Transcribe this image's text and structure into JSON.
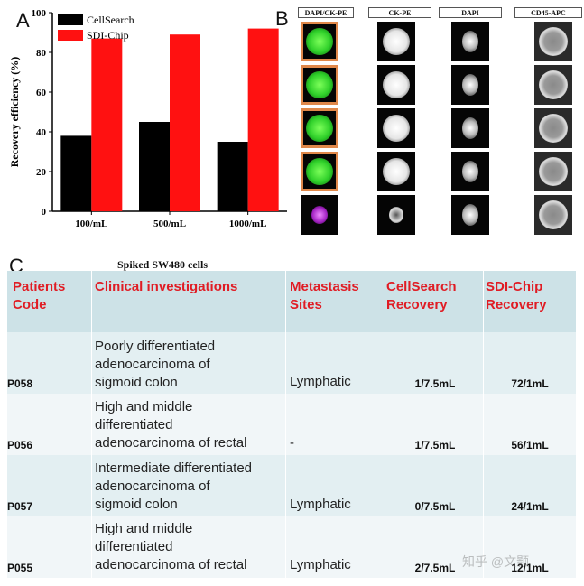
{
  "panel_a": {
    "letter": "A",
    "chart_data": {
      "type": "bar",
      "categories": [
        "100/mL",
        "500/mL",
        "1000/mL"
      ],
      "series": [
        {
          "name": "CellSearch",
          "values": [
            38,
            45,
            35
          ],
          "color": "#000000"
        },
        {
          "name": "SDI-Chip",
          "values": [
            87,
            89,
            92
          ],
          "color": "#ff1111"
        }
      ],
      "ylabel": "Recovery efficiency (%)",
      "ylim": [
        0,
        100
      ],
      "yticks": [
        "0",
        "20",
        "40",
        "60",
        "80",
        "100"
      ],
      "legend": "top-left",
      "grid": false
    }
  },
  "panel_b": {
    "letter": "B",
    "columns": [
      "DAPI/CK-PE",
      "CK-PE",
      "DAPI",
      "CD45-APC"
    ]
  },
  "panel_c": {
    "letter": "C",
    "title": "Spiked SW480 cells",
    "headers": {
      "code": "Patients Code",
      "clinical": "Clinical investigations",
      "metastasis": "Metastasis Sites",
      "cellsearch": "CellSearch Recovery",
      "sdichip": "SDI-Chip Recovery"
    },
    "rows": [
      {
        "code": "P058",
        "clinical_lines": [
          "Poorly differentiated",
          "adenocarcinoma of",
          "sigmoid colon"
        ],
        "metastasis": "Lymphatic",
        "cellsearch": "1/7.5mL",
        "sdichip": "72/1mL"
      },
      {
        "code": "P056",
        "clinical_lines": [
          "High and middle",
          "differentiated",
          "adenocarcinoma of rectal"
        ],
        "metastasis": "-",
        "cellsearch": "1/7.5mL",
        "sdichip": "56/1mL"
      },
      {
        "code": "P057",
        "clinical_lines": [
          "Intermediate differentiated",
          "adenocarcinoma of",
          "sigmoid colon"
        ],
        "metastasis": "Lymphatic",
        "cellsearch": "0/7.5mL",
        "sdichip": "24/1mL"
      },
      {
        "code": "P055",
        "clinical_lines": [
          "High and middle",
          "differentiated",
          "adenocarcinoma of rectal"
        ],
        "metastasis": "Lymphatic",
        "cellsearch": "2/7.5mL",
        "sdichip": "12/1mL"
      }
    ]
  },
  "watermark": "知乎 @文颢"
}
